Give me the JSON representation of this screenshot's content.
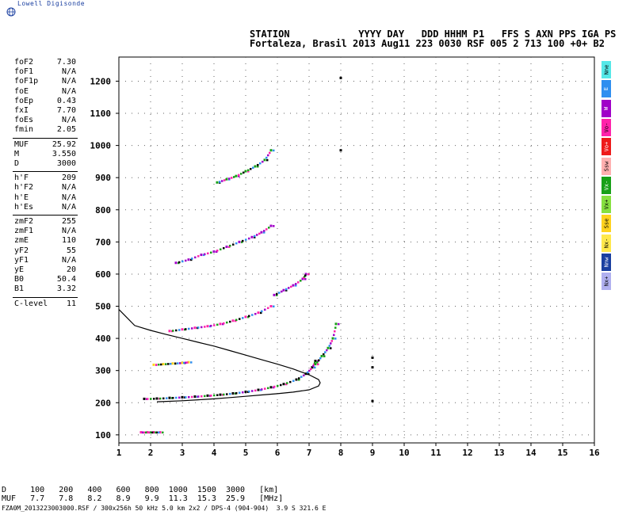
{
  "logo": {
    "text": "Lowell Digisonde"
  },
  "header": {
    "line1": "STATION            YYYY DAY   DDD HHHM P1   FFS S AXN PPS IGA PS",
    "line2": "Fortaleza, Brasil 2013 Aug11 223 0030 RSF 005 2 713 100 +0+ B2"
  },
  "params": [
    {
      "k": "foF2",
      "v": "7.30"
    },
    {
      "k": "foF1",
      "v": "N/A"
    },
    {
      "k": "foF1p",
      "v": "N/A"
    },
    {
      "k": "foE",
      "v": "N/A"
    },
    {
      "k": "foEp",
      "v": "0.43"
    },
    {
      "k": "fxI",
      "v": "7.70"
    },
    {
      "k": "foEs",
      "v": "N/A"
    },
    {
      "k": "fmin",
      "v": "2.05"
    },
    {
      "k": "MUF",
      "v": "25.92"
    },
    {
      "k": "M",
      "v": "3.550"
    },
    {
      "k": "D",
      "v": "3000"
    },
    {
      "k": "h'F",
      "v": "209"
    },
    {
      "k": "h'F2",
      "v": "N/A"
    },
    {
      "k": "h'E",
      "v": "N/A"
    },
    {
      "k": "h'Es",
      "v": "N/A"
    },
    {
      "k": "zmF2",
      "v": "255"
    },
    {
      "k": "zmF1",
      "v": "N/A"
    },
    {
      "k": "zmE",
      "v": "110"
    },
    {
      "k": "yF2",
      "v": "55"
    },
    {
      "k": "yF1",
      "v": "N/A"
    },
    {
      "k": "yE",
      "v": "20"
    },
    {
      "k": "B0",
      "v": "50.4"
    },
    {
      "k": "B1",
      "v": "3.32"
    },
    {
      "k": "C-level",
      "v": "11"
    }
  ],
  "legend": [
    {
      "label": "Nne",
      "color": "#55e8e8"
    },
    {
      "label": "E",
      "color": "#2f8ff0"
    },
    {
      "label": "W",
      "color": "#a000c8"
    },
    {
      "label": "Vo-",
      "color": "#ff22aa"
    },
    {
      "label": "Vo+",
      "color": "#ee1a1a"
    },
    {
      "label": "Ssw",
      "color": "#ffb0b0"
    },
    {
      "label": "Vx-",
      "color": "#18a018"
    },
    {
      "label": "Vx+",
      "color": "#86e040"
    },
    {
      "label": "Sse",
      "color": "#ffd21e"
    },
    {
      "label": "Nx-",
      "color": "#ffe84c"
    },
    {
      "label": "Nnw",
      "color": "#1a3fa0"
    },
    {
      "label": "Nx+",
      "color": "#b0b0f0"
    }
  ],
  "footer": {
    "row1": "D     100   200   400   600   800  1000  1500  3000   [km]",
    "row2": "MUF   7.7   7.8   8.2   8.9   9.9  11.3  15.3  25.9   [MHz]",
    "file": "FZA0M_2013223003000.RSF / 300x256h 50 kHz 5.0 km 2x2 / DPS-4 (904-904)  3.9 S 321.6 E"
  },
  "chart_data": {
    "type": "scatter",
    "title": "",
    "xlabel": "",
    "ylabel": "",
    "xlim": [
      1,
      16
    ],
    "ylim": [
      75,
      1275
    ],
    "x_ticks": [
      1,
      2,
      3,
      4,
      5,
      6,
      7,
      8,
      9,
      10,
      11,
      12,
      13,
      14,
      15,
      16
    ],
    "y_ticks": [
      100,
      200,
      300,
      400,
      500,
      600,
      700,
      800,
      900,
      1000,
      1100,
      1200
    ],
    "grid": "dotted",
    "series": [
      {
        "trace": "F-trace-1",
        "color": "#000000",
        "x": [
          1.8,
          2.2,
          2.6,
          3.0,
          3.4,
          3.8,
          4.2,
          4.6,
          5.0,
          5.4,
          5.8,
          6.2,
          6.6,
          6.9,
          7.1,
          7.2
        ],
        "y": [
          212,
          213,
          215,
          217,
          219,
          222,
          225,
          229,
          234,
          240,
          248,
          258,
          272,
          290,
          310,
          330
        ]
      },
      {
        "trace": "F-trace-2",
        "color": "#ff22aa",
        "x": [
          2.6,
          3.0,
          3.4,
          3.8,
          4.2,
          4.6,
          5.0,
          5.4,
          5.8
        ],
        "y": [
          423,
          428,
          433,
          438,
          445,
          455,
          467,
          480,
          500
        ]
      },
      {
        "trace": "F-trace-3",
        "color": "#a000c8",
        "x": [
          2.8,
          3.2,
          3.6,
          4.0,
          4.4,
          4.8,
          5.2,
          5.5,
          5.8
        ],
        "y": [
          635,
          645,
          660,
          670,
          685,
          700,
          715,
          730,
          750
        ]
      },
      {
        "trace": "F-trace-4",
        "color": "#18a018",
        "x": [
          4.1,
          4.4,
          4.7,
          5.0,
          5.3,
          5.6,
          5.8
        ],
        "y": [
          885,
          895,
          905,
          920,
          935,
          955,
          985
        ]
      },
      {
        "trace": "Es-trace",
        "color": "#ff22aa",
        "x": [
          1.7,
          1.9,
          2.1,
          2.3
        ],
        "y": [
          108,
          108,
          108,
          108
        ]
      },
      {
        "trace": "weak-trace",
        "color": "#ffd21e",
        "x": [
          2.1,
          2.4,
          2.7,
          3.0,
          3.2
        ],
        "y": [
          318,
          320,
          322,
          324,
          326
        ]
      },
      {
        "trace": "O-extension",
        "color": "#18a018",
        "x": [
          7.2,
          7.4,
          7.6,
          7.75,
          7.85
        ],
        "y": [
          320,
          345,
          370,
          400,
          445
        ]
      },
      {
        "trace": "F-second-hop-upper",
        "color": "#a000c8",
        "x": [
          5.9,
          6.2,
          6.5,
          6.8,
          6.9
        ],
        "y": [
          535,
          550,
          565,
          585,
          600
        ]
      },
      {
        "trace": "isolated",
        "color": "#000000",
        "x": [
          8.0,
          8.0,
          9.0,
          9.0,
          9.0
        ],
        "y": [
          985,
          1210,
          205,
          310,
          340
        ]
      }
    ],
    "profile_curve": {
      "x": [
        1.0,
        1.5,
        2.0,
        2.5,
        3.0,
        3.5,
        4.0,
        4.5,
        5.0,
        5.5,
        6.0,
        6.5,
        7.0,
        7.3,
        7.35,
        7.3,
        7.0,
        6.5,
        6.0,
        5.5,
        5.0,
        4.5,
        4.0,
        3.5,
        3.0,
        2.5,
        2.2
      ],
      "y": [
        490,
        440,
        425,
        412,
        400,
        388,
        376,
        362,
        348,
        334,
        320,
        305,
        287,
        272,
        262,
        252,
        240,
        233,
        228,
        224,
        220,
        216,
        212,
        209,
        206,
        204,
        203
      ]
    }
  }
}
